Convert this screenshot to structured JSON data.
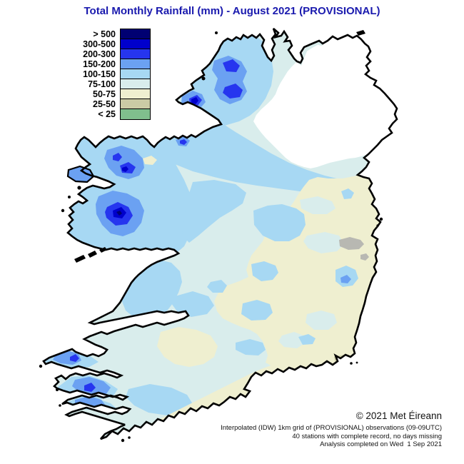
{
  "title": {
    "text": "Total Monthly Rainfall (mm) - August 2021 (PROVISIONAL)",
    "color": "#1a1aae"
  },
  "legend": {
    "bands": [
      {
        "label": "> 500",
        "color": "#000072"
      },
      {
        "label": "300-500",
        "color": "#0000cc"
      },
      {
        "label": "200-300",
        "color": "#2635ef"
      },
      {
        "label": "150-200",
        "color": "#6ba1f2"
      },
      {
        "label": "100-150",
        "color": "#a7d8f3"
      },
      {
        "label": "75-100",
        "color": "#d9edec"
      },
      {
        "label": "50-75",
        "color": "#efefd0"
      },
      {
        "label": "25-50",
        "color": "#cbcba5"
      },
      {
        "label": "< 25",
        "color": "#80bf8d"
      }
    ]
  },
  "map": {
    "coastline_color": "#000000",
    "no_data_fill": "#ffffff",
    "sea_color": "#ffffff",
    "urban_gray_color": "#b8b8b2"
  },
  "attribution": {
    "copyright": "© 2021 Met Éireann",
    "lines": [
      "Interpolated (IDW) 1km grid of (PROVISIONAL) observations (09-09UTC)",
      "40 stations with complete record, no days missing",
      "Analysis completed on Wed  1 Sep 2021"
    ]
  }
}
